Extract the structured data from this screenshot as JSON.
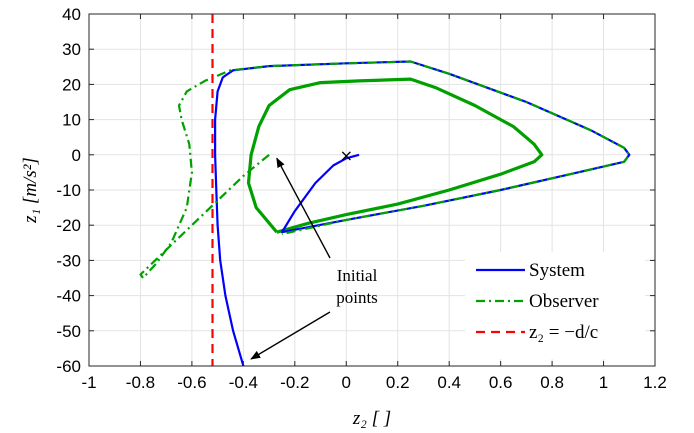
{
  "chart_data": {
    "type": "line",
    "xlabel": "z₂ [ ]",
    "ylabel": "z₁ [m/s²]",
    "xlim": [
      -1,
      1.2
    ],
    "ylim": [
      -60,
      40
    ],
    "xticks": [
      -1,
      -0.8,
      -0.6,
      -0.4,
      -0.2,
      0,
      0.2,
      0.4,
      0.6,
      0.8,
      1,
      1.2
    ],
    "xtick_labels": [
      "-1",
      "-0.8",
      "-0.6",
      "-0.4",
      "-0.2",
      "0",
      "0.2",
      "0.4",
      "0.6",
      "0.8",
      "1",
      "1.2"
    ],
    "yticks": [
      40,
      30,
      20,
      10,
      0,
      -10,
      -20,
      -30,
      -40,
      -50,
      -60
    ],
    "ytick_labels": [
      "40",
      "30",
      "20",
      "10",
      "0",
      "-10",
      "-20",
      "-30",
      "-40",
      "-50",
      "-60"
    ],
    "grid": true,
    "legend_position": "bottom-right",
    "series": [
      {
        "name": "System",
        "color": "#0000ff",
        "style": "solid",
        "points": [
          [
            -0.4,
            -60
          ],
          [
            -0.44,
            -50
          ],
          [
            -0.47,
            -40
          ],
          [
            -0.49,
            -30
          ],
          [
            -0.5,
            -20
          ],
          [
            -0.505,
            -10
          ],
          [
            -0.51,
            0
          ],
          [
            -0.51,
            10
          ],
          [
            -0.5,
            18
          ],
          [
            -0.48,
            22
          ],
          [
            -0.44,
            24
          ],
          [
            -0.3,
            25.2
          ],
          [
            0,
            26
          ],
          [
            0.25,
            26.5
          ],
          [
            0.4,
            23
          ],
          [
            0.7,
            15
          ],
          [
            0.95,
            7
          ],
          [
            1.08,
            2
          ],
          [
            1.1,
            0
          ],
          [
            1.08,
            -2
          ],
          [
            0.9,
            -5
          ],
          [
            0.6,
            -10
          ],
          [
            0.3,
            -14.5
          ],
          [
            0,
            -18.5
          ],
          [
            -0.25,
            -22
          ],
          [
            -0.2,
            -16
          ],
          [
            -0.12,
            -8
          ],
          [
            -0.05,
            -3
          ],
          [
            0,
            -1
          ],
          [
            0.05,
            0
          ]
        ]
      },
      {
        "name": "Observer",
        "color": "#00a000",
        "style": "dashdot",
        "points": [
          [
            -0.3,
            0
          ],
          [
            -0.4,
            -6
          ],
          [
            -0.5,
            -13
          ],
          [
            -0.6,
            -20
          ],
          [
            -0.7,
            -27
          ],
          [
            -0.8,
            -34
          ],
          [
            -0.79,
            -35
          ],
          [
            -0.74,
            -31
          ],
          [
            -0.68,
            -25
          ],
          [
            -0.62,
            -15
          ],
          [
            -0.6,
            -5
          ],
          [
            -0.61,
            3
          ],
          [
            -0.64,
            10
          ],
          [
            -0.65,
            14
          ],
          [
            -0.62,
            18
          ],
          [
            -0.55,
            21
          ],
          [
            -0.45,
            24
          ],
          [
            -0.3,
            25.2
          ],
          [
            0,
            26
          ],
          [
            0.25,
            26.5
          ],
          [
            0.4,
            23
          ],
          [
            0.7,
            15
          ],
          [
            0.95,
            7
          ],
          [
            1.08,
            2
          ],
          [
            1.1,
            0
          ],
          [
            1.08,
            -2
          ],
          [
            0.9,
            -5
          ],
          [
            0.6,
            -10
          ],
          [
            0.3,
            -14.5
          ],
          [
            0,
            -18.5
          ],
          [
            -0.25,
            -22.5
          ]
        ]
      },
      {
        "name": "z₂ = −d/c",
        "color": "#ff0000",
        "style": "dashed",
        "points": [
          [
            -0.52,
            40
          ],
          [
            -0.52,
            -60
          ]
        ]
      }
    ],
    "limit_cycle": {
      "color": "#00a000",
      "points": [
        [
          -0.27,
          -22
        ],
        [
          -0.35,
          -15
        ],
        [
          -0.38,
          -8
        ],
        [
          -0.37,
          0
        ],
        [
          -0.34,
          8
        ],
        [
          -0.3,
          14
        ],
        [
          -0.22,
          18.5
        ],
        [
          -0.1,
          20.5
        ],
        [
          0.05,
          21
        ],
        [
          0.25,
          21.5
        ],
        [
          0.35,
          19
        ],
        [
          0.5,
          14
        ],
        [
          0.65,
          8
        ],
        [
          0.73,
          3
        ],
        [
          0.76,
          0
        ],
        [
          0.73,
          -2
        ],
        [
          0.6,
          -5.5
        ],
        [
          0.4,
          -10
        ],
        [
          0.2,
          -14
        ],
        [
          0,
          -17
        ],
        [
          -0.15,
          -19.5
        ],
        [
          -0.27,
          -22
        ]
      ]
    },
    "center_marker": {
      "x": 0,
      "y": 0,
      "symbol": "×"
    },
    "annotation": {
      "lines": [
        "Initial",
        "points"
      ],
      "arrows_to": [
        [
          -0.27,
          -1
        ],
        [
          -0.37,
          -58
        ]
      ]
    }
  }
}
